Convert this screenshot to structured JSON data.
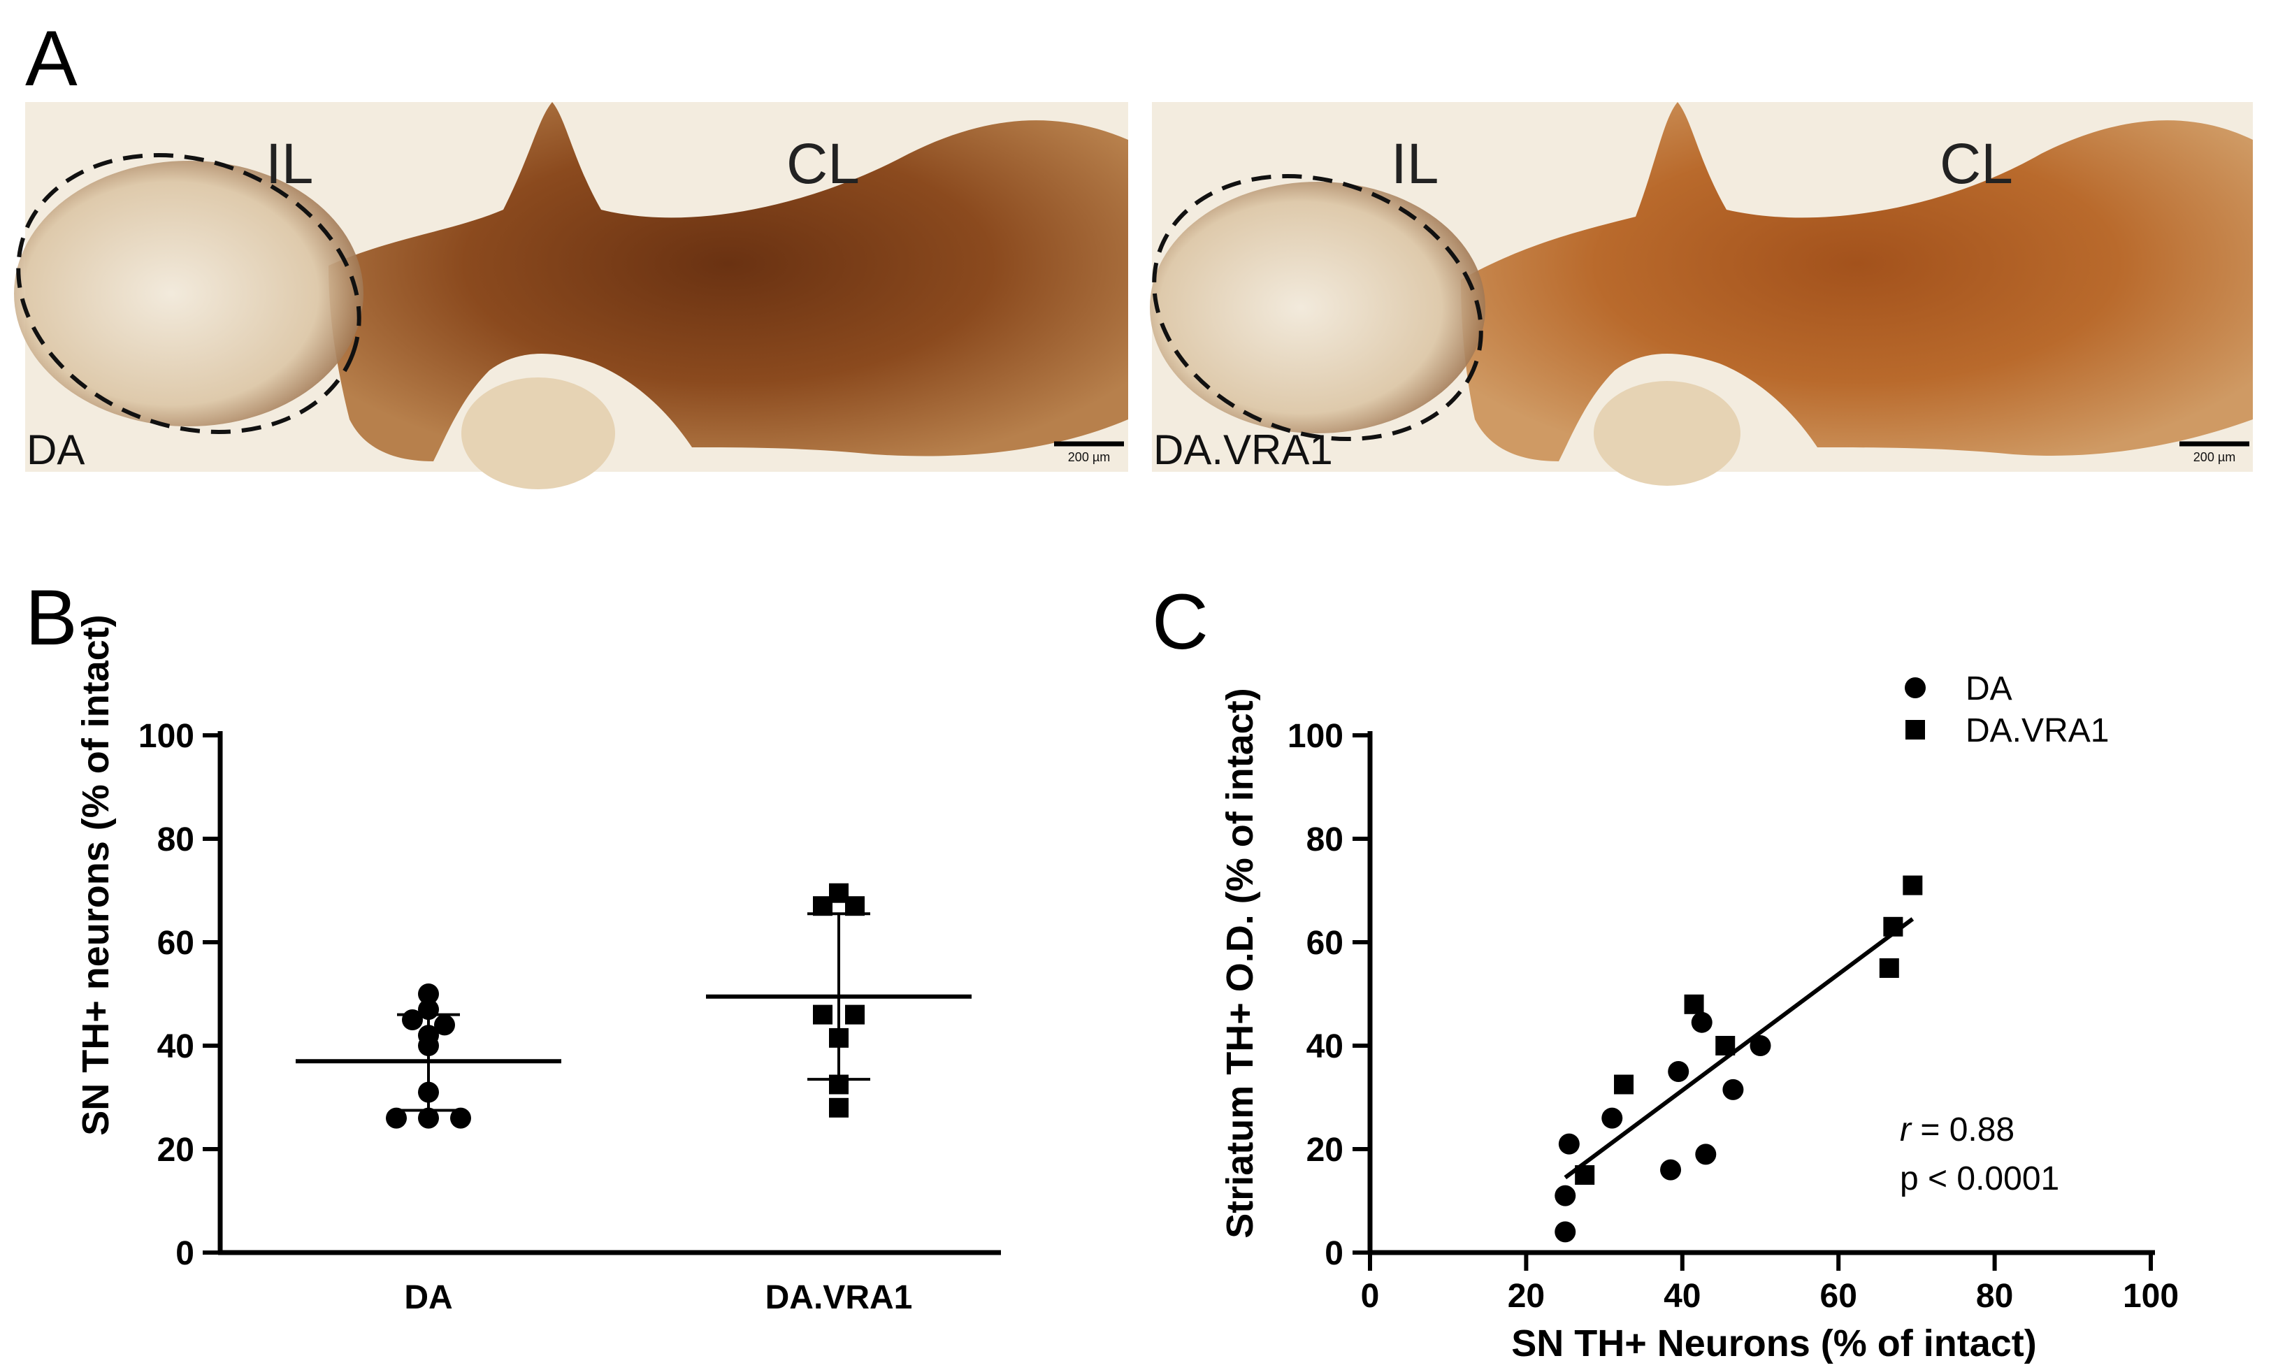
{
  "panels": {
    "A": {
      "letter": "A",
      "images": [
        {
          "corner_label": "DA",
          "region_left": "IL",
          "region_right": "CL",
          "scale_bar": "200 µm"
        },
        {
          "corner_label": "DA.VRA1",
          "region_left": "IL",
          "region_right": "CL",
          "scale_bar": "200 µm"
        }
      ],
      "colors": {
        "stain_dark": "#5a2a10",
        "stain_mid": "#9a5a2a",
        "background": "#f3ecdf"
      }
    },
    "B": {
      "letter": "B"
    },
    "C": {
      "letter": "C"
    }
  },
  "chart_data": [
    {
      "panel": "B",
      "type": "scatter",
      "xlabel": "",
      "ylabel": "SN TH+ neurons (% of intact)",
      "ylim": [
        0,
        100
      ],
      "yticks": [
        "0",
        "20",
        "40",
        "60",
        "80",
        "100"
      ],
      "categories": [
        "DA",
        "DA.VRA1"
      ],
      "groups": [
        {
          "category": "DA",
          "marker": "circle",
          "values": [
            50,
            47,
            45,
            44,
            42,
            40,
            31,
            26,
            26,
            26
          ],
          "mean": 37,
          "sd_upper": 46,
          "sd_lower": 27.5
        },
        {
          "category": "DA.VRA1",
          "marker": "square",
          "values": [
            69.5,
            67,
            67,
            46,
            46,
            41.5,
            32.5,
            28
          ],
          "mean": 49.5,
          "sd_upper": 65.5,
          "sd_lower": 33.5
        }
      ],
      "grid": false
    },
    {
      "panel": "C",
      "type": "scatter",
      "xlabel": "SN TH+ Neurons (% of intact)",
      "ylabel": "Striatum TH+ O.D. (% of  intact)",
      "xlim": [
        0,
        100
      ],
      "ylim": [
        0,
        100
      ],
      "xticks": [
        "0",
        "20",
        "40",
        "60",
        "80",
        "100"
      ],
      "yticks": [
        "0",
        "20",
        "40",
        "60",
        "80",
        "100"
      ],
      "series": [
        {
          "name": "DA",
          "marker": "circle",
          "points": [
            [
              25,
              4
            ],
            [
              25,
              11
            ],
            [
              25.5,
              21
            ],
            [
              31,
              26
            ],
            [
              38.5,
              16
            ],
            [
              39.5,
              35
            ],
            [
              42.5,
              44.5
            ],
            [
              43,
              19
            ],
            [
              46.5,
              31.5
            ],
            [
              50,
              40
            ]
          ]
        },
        {
          "name": "DA.VRA1",
          "marker": "square",
          "points": [
            [
              27.5,
              15
            ],
            [
              32.5,
              32.5
            ],
            [
              41.5,
              48
            ],
            [
              45.5,
              40
            ],
            [
              66.5,
              55
            ],
            [
              67,
              63
            ],
            [
              69.5,
              71
            ]
          ]
        }
      ],
      "fit_line": {
        "x": [
          25,
          69.5
        ],
        "y": [
          14.5,
          64.5
        ]
      },
      "legend_position": "top-right",
      "stats": {
        "r_symbol": "r",
        "r_text": " = 0.88",
        "p_text": "p < 0.0001"
      },
      "grid": false
    }
  ]
}
